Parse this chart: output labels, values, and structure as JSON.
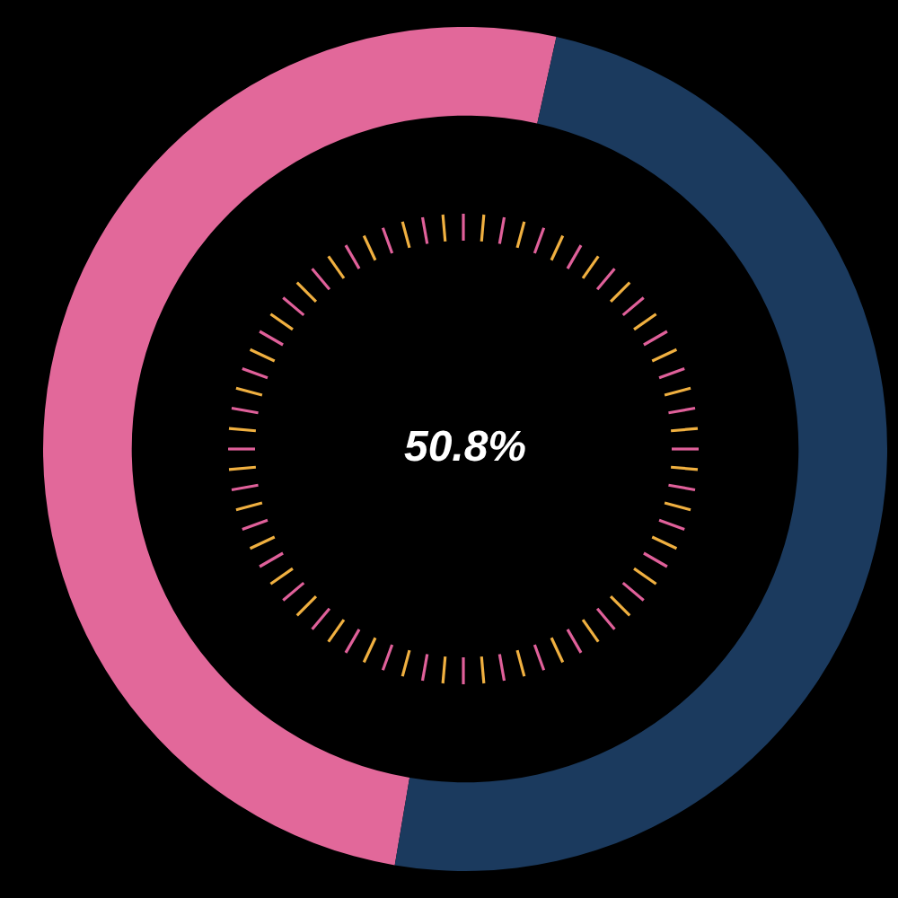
{
  "chart_data": {
    "type": "donut",
    "categories": [
      null,
      null
    ],
    "values": [
      50.8,
      49.2
    ],
    "colors": [
      "#e2689a",
      "#1b3a5e"
    ],
    "annotations": [
      "50.8%"
    ],
    "legend": false
  }
}
